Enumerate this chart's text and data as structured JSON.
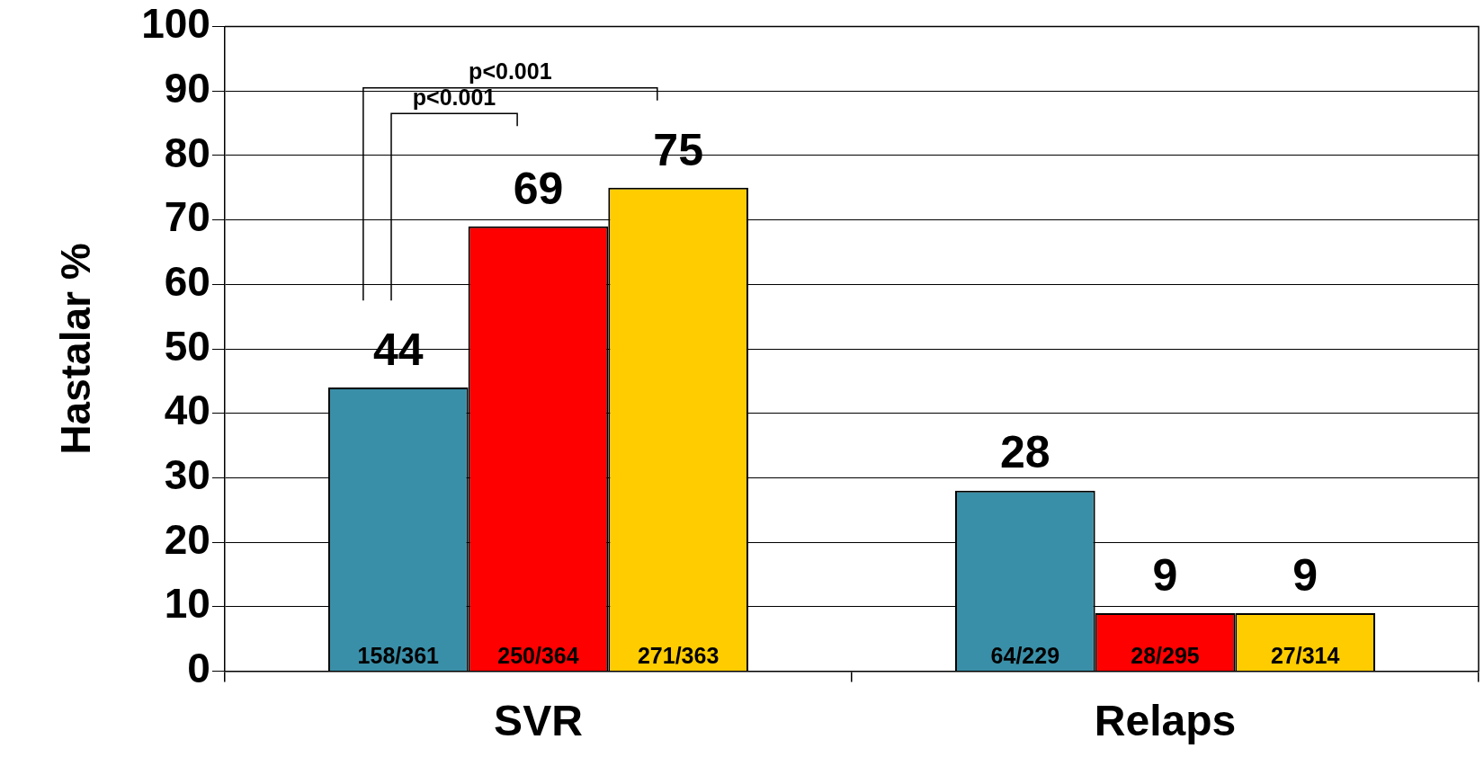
{
  "chart_data": {
    "type": "bar",
    "ylabel": "Hastalar %",
    "categories": [
      "SVR",
      "Relaps"
    ],
    "series": [
      {
        "color": "#3a8fa8",
        "values": [
          44,
          28
        ]
      },
      {
        "color": "#ff0000",
        "values": [
          69,
          9
        ]
      },
      {
        "color": "#ffcc00",
        "values": [
          75,
          9
        ]
      }
    ],
    "ylim": [
      0,
      100
    ],
    "yticks": [
      0,
      10,
      20,
      30,
      40,
      50,
      60,
      70,
      80,
      90,
      100
    ],
    "grid": "y",
    "legend": false,
    "data_labels": true,
    "annotations": [
      "p<0.001",
      "p<0.001",
      "158/361",
      "250/364",
      "271/363",
      "64/229",
      "28/295",
      "27/314"
    ]
  }
}
